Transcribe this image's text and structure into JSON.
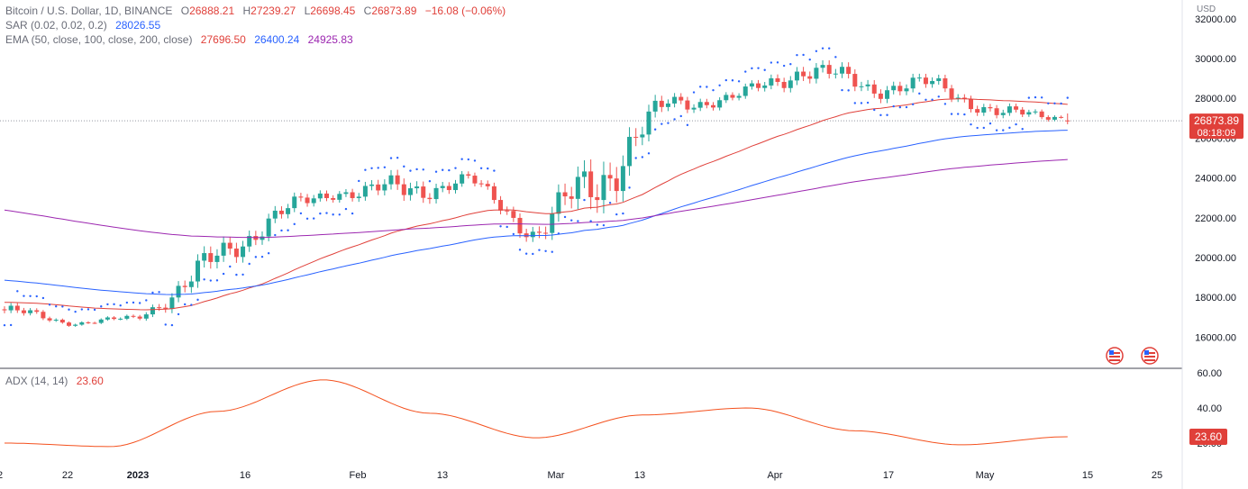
{
  "header": {
    "symbol": "Bitcoin / U.S. Dollar, 1D, BINANCE",
    "o_label": "O",
    "o": "26888.21",
    "h_label": "H",
    "h": "27239.27",
    "l_label": "L",
    "l": "26698.45",
    "c_label": "C",
    "c": "26873.89",
    "change": "−16.08 (−0.06%)"
  },
  "indicators": {
    "sar": {
      "label": "SAR (0.02, 0.02, 0.2)",
      "value": "28026.55"
    },
    "ema": {
      "label": "EMA (50, close, 100, close, 200, close)",
      "v50": "27696.50",
      "v100": "26400.24",
      "v200": "24925.83"
    },
    "adx": {
      "label": "ADX (14, 14)",
      "value": "23.60"
    }
  },
  "currency": "USD",
  "price_badge": {
    "price": "26873.89",
    "countdown": "08:18:09"
  },
  "adx_badge": "23.60",
  "colors": {
    "up": "#26a69a",
    "down": "#ef5350",
    "ema50": "#e0403a",
    "ema100": "#2962ff",
    "ema200": "#9c27b0",
    "sar": "#2962ff",
    "adx": "#f4511e"
  },
  "chart_data": {
    "type": "candlestick",
    "title": "Bitcoin / U.S. Dollar, 1D, BINANCE",
    "x_tick_labels": [
      "2",
      "22",
      "2023",
      "16",
      "Feb",
      "13",
      "Mar",
      "13",
      "Apr",
      "17",
      "May",
      "15",
      "25"
    ],
    "y_tick_labels": [
      "16000.00",
      "18000.00",
      "20000.00",
      "22000.00",
      "24000.00",
      "26000.00",
      "28000.00",
      "30000.00",
      "32000.00"
    ],
    "ylim": [
      14400,
      32400
    ],
    "ohlc_ranges_by_period": [
      {
        "period": "mid Dec 2022",
        "low": 16400,
        "high": 18300
      },
      {
        "period": "late Dec 2022",
        "low": 16400,
        "high": 17000
      },
      {
        "period": "early Jan 2023",
        "low": 16500,
        "high": 17400
      },
      {
        "period": "mid Jan 2023",
        "low": 17200,
        "high": 21500
      },
      {
        "period": "late Jan 2023",
        "low": 20500,
        "high": 23500
      },
      {
        "period": "early Feb 2023",
        "low": 22500,
        "high": 24200
      },
      {
        "period": "mid Feb 2023",
        "low": 21500,
        "high": 25200
      },
      {
        "period": "late Feb 2023",
        "low": 23000,
        "high": 24800
      },
      {
        "period": "early Mar 2023",
        "low": 19600,
        "high": 22700
      },
      {
        "period": "mid Mar 2023",
        "low": 20000,
        "high": 28500
      },
      {
        "period": "late Mar 2023",
        "low": 26500,
        "high": 29000
      },
      {
        "period": "early Apr 2023",
        "low": 27200,
        "high": 28800
      },
      {
        "period": "mid Apr 2023",
        "low": 28000,
        "high": 31000
      },
      {
        "period": "late Apr 2023",
        "low": 27200,
        "high": 30000
      },
      {
        "period": "early May 2023",
        "low": 27500,
        "high": 29800
      },
      {
        "period": "mid May 2023",
        "low": 26200,
        "high": 28200
      },
      {
        "period": "late May 2023",
        "low": 26698.45,
        "high": 27500
      }
    ],
    "last_candle": {
      "open": 26888.21,
      "high": 27239.27,
      "low": 26698.45,
      "close": 26873.89
    },
    "ema": {
      "periods": [
        50,
        100,
        200
      ],
      "last_values": [
        27696.5,
        26400.24,
        24925.83
      ]
    },
    "sar_last": 28026.55,
    "adx": {
      "y_tick_labels": [
        "20.00",
        "40.00",
        "60.00"
      ],
      "ylim": [
        18,
        62
      ],
      "last": 23.6,
      "approx_values_by_period": [
        {
          "period": "mid Dec 2022",
          "value": 20
        },
        {
          "period": "early Jan 2023",
          "value": 18
        },
        {
          "period": "mid Jan 2023",
          "value": 38
        },
        {
          "period": "early Feb 2023",
          "value": 56
        },
        {
          "period": "late Feb 2023",
          "value": 37
        },
        {
          "period": "mid Mar 2023",
          "value": 23
        },
        {
          "period": "late Mar 2023",
          "value": 36
        },
        {
          "period": "mid Apr 2023",
          "value": 40
        },
        {
          "period": "early May 2023",
          "value": 27
        },
        {
          "period": "mid May 2023",
          "value": 19
        },
        {
          "period": "late May 2023",
          "value": 23.6
        }
      ]
    }
  }
}
